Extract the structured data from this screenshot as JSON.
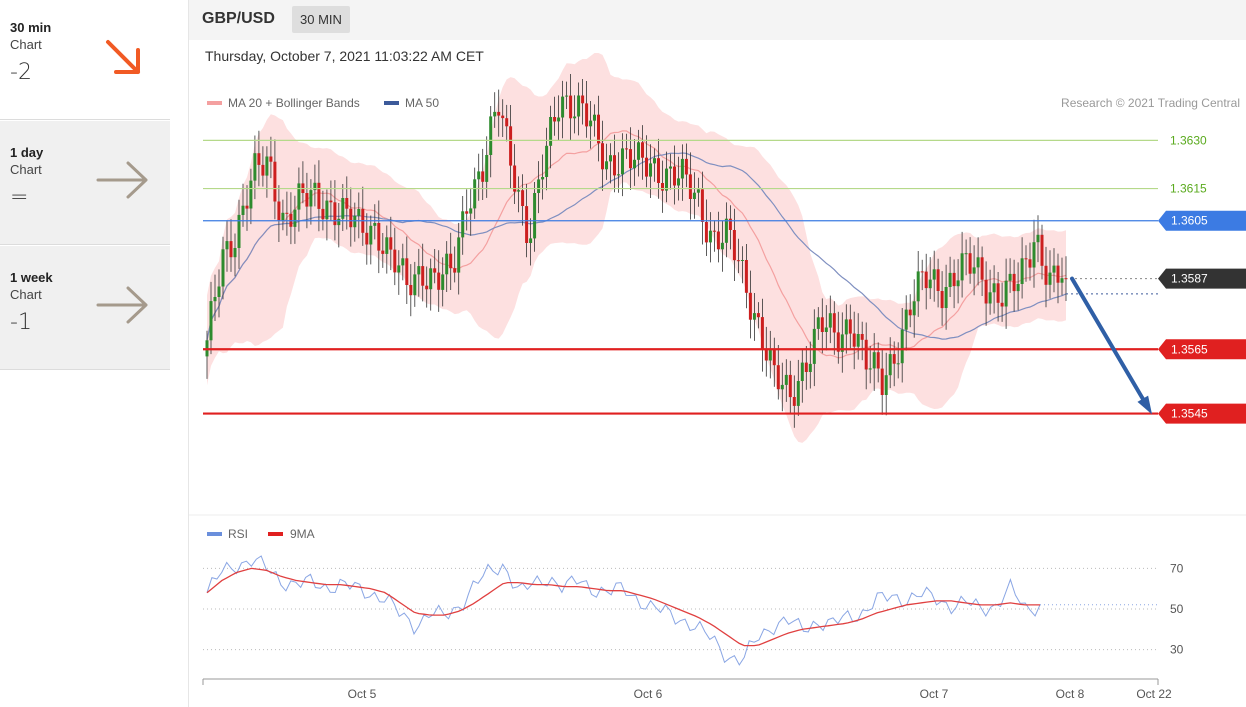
{
  "timeframes": [
    {
      "name": "30 min",
      "sub": "Chart",
      "score": "-2",
      "direction": "down",
      "color": "#f15a24"
    },
    {
      "name": "1 day",
      "sub": "Chart",
      "score": "=",
      "direction": "right",
      "color": "#a59a8c"
    },
    {
      "name": "1 week",
      "sub": "Chart",
      "score": "-1",
      "direction": "right",
      "color": "#a59a8c"
    }
  ],
  "header": {
    "symbol": "GBP/USD",
    "timeframe": "30 MIN"
  },
  "datetime": "Thursday, October 7, 2021 11:03:22 AM CET",
  "copyright": "Research © 2021 Trading Central",
  "chart_data": {
    "type": "candlestick",
    "legend": [
      {
        "name": "MA 20 + Bollinger Bands",
        "color": "#f4a0a0"
      },
      {
        "name": "MA 50",
        "color": "#3c5a9a"
      }
    ],
    "levels": [
      {
        "value": 1.363,
        "label": "1.3630",
        "color": "#b5d98a",
        "text_color": "#5aaa1e",
        "style": "thin"
      },
      {
        "value": 1.3615,
        "label": "1.3615",
        "color": "#b5d98a",
        "text_color": "#5aaa1e",
        "style": "thin"
      },
      {
        "value": 1.3605,
        "label": "1.3605",
        "color": "#3c7be3",
        "style": "badge"
      },
      {
        "value": 1.3587,
        "label": "1.3587",
        "color": "#333333",
        "style": "badge-dotted"
      },
      {
        "value": 1.3565,
        "label": "1.3565",
        "color": "#e02020",
        "style": "badge-thick"
      },
      {
        "value": 1.3545,
        "label": "1.3545",
        "color": "#e02020",
        "style": "badge-thick"
      }
    ],
    "price_range": [
      1.3515,
      1.3655
    ],
    "last_price": 1.3587,
    "forecast_target": 1.3545,
    "x_labels": [
      "Oct 5",
      "Oct 6",
      "Oct 7",
      "Oct 8",
      "Oct 22"
    ],
    "close_path": [
      1.3565,
      1.3594,
      1.3604,
      1.3618,
      1.3623,
      1.3606,
      1.361,
      1.3612,
      1.3611,
      1.3606,
      1.3602,
      1.3604,
      1.3593,
      1.3584,
      1.3591,
      1.3586,
      1.3588,
      1.3614,
      1.3621,
      1.364,
      1.3622,
      1.3599,
      1.3623,
      1.3645,
      1.3641,
      1.3634,
      1.3624,
      1.3625,
      1.3622,
      1.3623,
      1.362,
      1.3617,
      1.3612,
      1.36,
      1.3599,
      1.3587,
      1.3573,
      1.3555,
      1.355,
      1.3562,
      1.3572,
      1.3568,
      1.3575,
      1.356,
      1.3554,
      1.3567,
      1.358,
      1.3587,
      1.3585,
      1.3589,
      1.359,
      1.3585,
      1.3582,
      1.3585,
      1.3602,
      1.3586,
      1.3587
    ],
    "rsi": {
      "legend": [
        {
          "name": "RSI",
          "color": "#6a8fdc"
        },
        {
          "name": "9MA",
          "color": "#e02020"
        }
      ],
      "levels": [
        70,
        50,
        30
      ],
      "range": [
        20,
        80
      ],
      "values": [
        58,
        68,
        72,
        74,
        70,
        64,
        62,
        63,
        61,
        62,
        60,
        58,
        55,
        47,
        42,
        48,
        46,
        52,
        62,
        68,
        72,
        58,
        62,
        66,
        60,
        64,
        60,
        58,
        60,
        55,
        50,
        48,
        45,
        40,
        35,
        27,
        24,
        36,
        42,
        44,
        40,
        44,
        42,
        46,
        48,
        54,
        56,
        55,
        57,
        55,
        52,
        53,
        50,
        52,
        60,
        50,
        52
      ],
      "ma": [
        58,
        64,
        68,
        70,
        69,
        66,
        64,
        63,
        62,
        62,
        61,
        60,
        58,
        53,
        48,
        47,
        47,
        49,
        53,
        58,
        63,
        63,
        62,
        62,
        61,
        61,
        60,
        59,
        59,
        57,
        55,
        52,
        49,
        46,
        42,
        37,
        32,
        32,
        35,
        38,
        40,
        41,
        42,
        43,
        45,
        48,
        50,
        52,
        53,
        54,
        54,
        53,
        52,
        52,
        53,
        52,
        52
      ]
    }
  }
}
